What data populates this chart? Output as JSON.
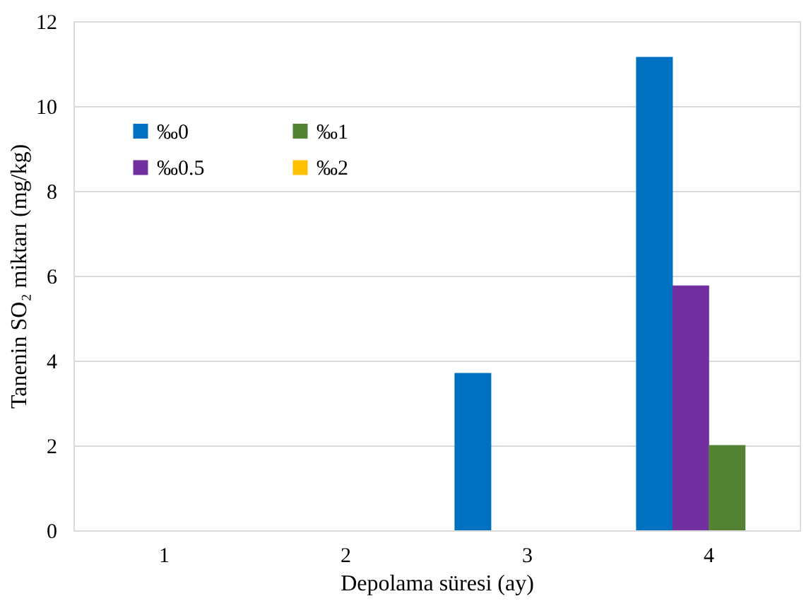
{
  "chart_data": {
    "type": "bar",
    "xlabel": "Depolama süresi (ay)",
    "ylabel": "Tanenin SO₂ miktarı (mg/kg)",
    "categories": [
      "1",
      "2",
      "3",
      "4"
    ],
    "series": [
      {
        "name": "‰0",
        "color": "#0070c0",
        "values": [
          0,
          0,
          3.71,
          11.16
        ]
      },
      {
        "name": "‰0.5",
        "color": "#7030a0",
        "values": [
          0,
          0,
          0,
          5.77
        ]
      },
      {
        "name": "‰1",
        "color": "#548235",
        "values": [
          0,
          0,
          0,
          2.01
        ]
      },
      {
        "name": "‰2",
        "color": "#ffc000",
        "values": [
          0,
          0,
          0,
          0
        ]
      }
    ],
    "ylim": [
      0,
      12
    ],
    "yticks": [
      0,
      2,
      4,
      6,
      8,
      10,
      12
    ],
    "grid": "y",
    "legend": "top left"
  }
}
